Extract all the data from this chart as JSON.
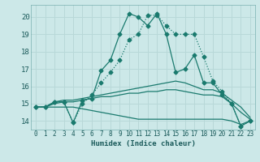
{
  "xlabel": "Humidex (Indice chaleur)",
  "background_color": "#cce8e8",
  "grid_color": "#b8d8d8",
  "line_color": "#1a7a6e",
  "xlim": [
    -0.5,
    23.5
  ],
  "ylim": [
    13.5,
    20.7
  ],
  "yticks": [
    14,
    15,
    16,
    17,
    18,
    19,
    20
  ],
  "xticks": [
    0,
    1,
    2,
    3,
    4,
    5,
    6,
    7,
    8,
    9,
    10,
    11,
    12,
    13,
    14,
    15,
    16,
    17,
    18,
    19,
    20,
    21,
    22,
    23
  ],
  "series": [
    {
      "x": [
        0,
        1,
        2,
        3,
        4,
        5,
        6,
        7,
        8,
        9,
        10,
        11,
        12,
        13,
        14,
        15,
        16,
        17,
        18,
        19,
        20,
        21,
        22,
        23
      ],
      "y": [
        14.8,
        14.8,
        15.1,
        15.1,
        13.9,
        15.0,
        15.5,
        16.2,
        16.8,
        17.5,
        18.7,
        19.0,
        20.1,
        20.1,
        19.5,
        19.0,
        19.0,
        19.0,
        17.7,
        16.3,
        15.7,
        15.0,
        13.7,
        14.0
      ],
      "style": "dotted",
      "marker": "D",
      "markersize": 2.5
    },
    {
      "x": [
        0,
        1,
        2,
        3,
        4,
        5,
        6,
        7,
        8,
        9,
        10,
        11,
        12,
        13,
        14,
        15,
        16,
        17,
        18,
        19,
        20,
        21,
        22,
        23
      ],
      "y": [
        14.8,
        14.8,
        15.1,
        15.1,
        13.9,
        15.2,
        15.3,
        16.9,
        17.5,
        19.0,
        20.2,
        20.0,
        19.5,
        20.2,
        19.0,
        16.8,
        17.0,
        17.8,
        16.2,
        16.2,
        15.5,
        15.0,
        13.7,
        14.0
      ],
      "style": "solid",
      "marker": "D",
      "markersize": 2.5
    },
    {
      "x": [
        0,
        1,
        2,
        3,
        4,
        5,
        6,
        7,
        8,
        9,
        10,
        11,
        12,
        13,
        14,
        15,
        16,
        17,
        18,
        19,
        20,
        21,
        22,
        23
      ],
      "y": [
        14.8,
        14.8,
        15.1,
        15.2,
        15.2,
        15.3,
        15.4,
        15.5,
        15.6,
        15.7,
        15.8,
        15.9,
        16.0,
        16.1,
        16.2,
        16.3,
        16.2,
        16.0,
        15.8,
        15.8,
        15.6,
        15.2,
        14.8,
        14.2
      ],
      "style": "solid",
      "marker": null,
      "markersize": 0
    },
    {
      "x": [
        0,
        1,
        2,
        3,
        4,
        5,
        6,
        7,
        8,
        9,
        10,
        11,
        12,
        13,
        14,
        15,
        16,
        17,
        18,
        19,
        20,
        21,
        22,
        23
      ],
      "y": [
        14.8,
        14.8,
        15.0,
        15.1,
        15.1,
        15.2,
        15.3,
        15.4,
        15.4,
        15.5,
        15.6,
        15.6,
        15.7,
        15.7,
        15.8,
        15.8,
        15.7,
        15.6,
        15.5,
        15.5,
        15.4,
        15.0,
        14.5,
        14.1
      ],
      "style": "solid",
      "marker": null,
      "markersize": 0
    },
    {
      "x": [
        0,
        1,
        2,
        3,
        4,
        5,
        6,
        7,
        8,
        9,
        10,
        11,
        12,
        13,
        14,
        15,
        16,
        17,
        18,
        19,
        20,
        21,
        22,
        23
      ],
      "y": [
        14.8,
        14.8,
        14.8,
        14.8,
        14.8,
        14.7,
        14.6,
        14.5,
        14.4,
        14.3,
        14.2,
        14.1,
        14.1,
        14.1,
        14.1,
        14.1,
        14.1,
        14.1,
        14.1,
        14.1,
        14.1,
        14.0,
        13.8,
        14.0
      ],
      "style": "solid",
      "marker": null,
      "markersize": 0
    }
  ]
}
